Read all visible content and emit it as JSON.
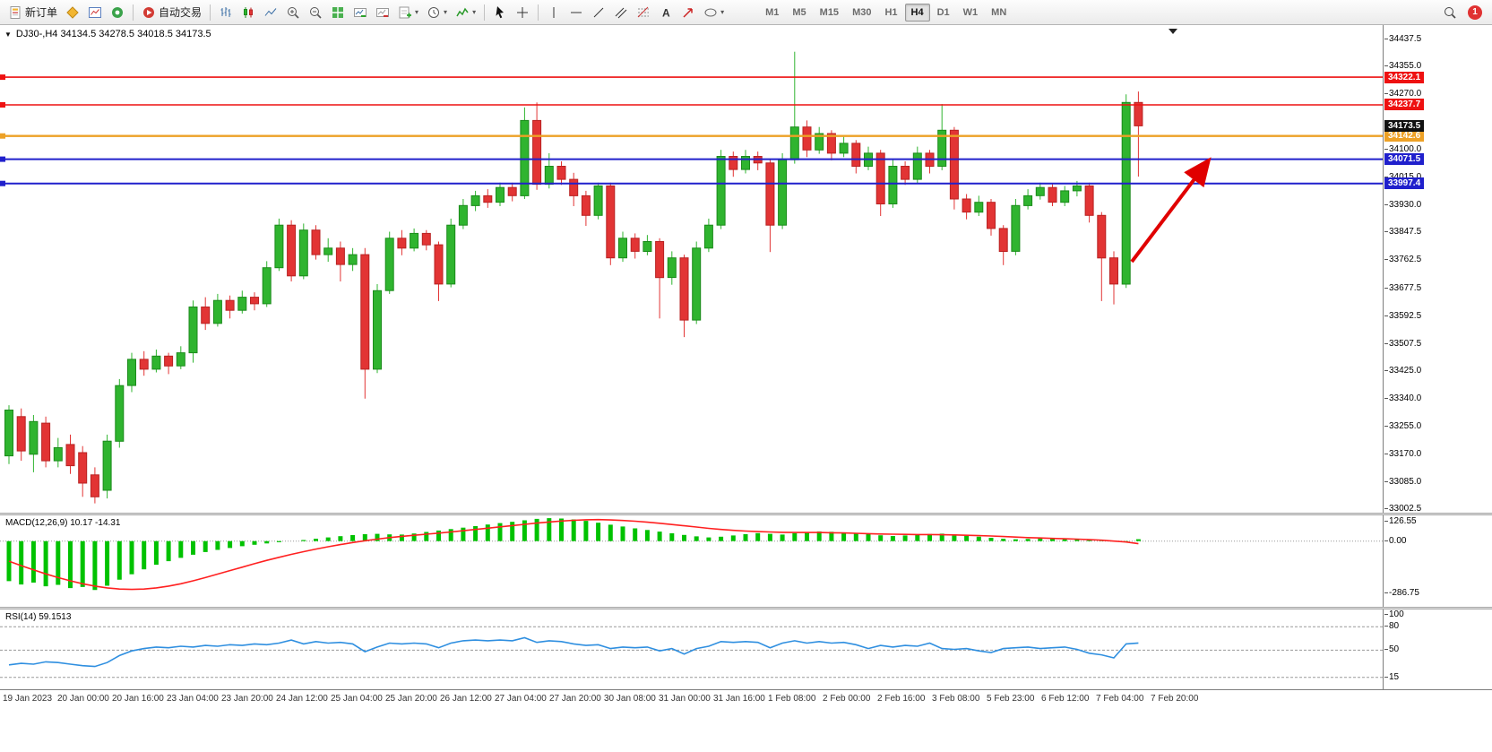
{
  "toolbar": {
    "new_order_label": "新订单",
    "autotrading_label": "自动交易",
    "notification_count": "1",
    "timeframes": [
      {
        "label": "M1",
        "active": false
      },
      {
        "label": "M5",
        "active": false
      },
      {
        "label": "M15",
        "active": false
      },
      {
        "label": "M30",
        "active": false
      },
      {
        "label": "H1",
        "active": false
      },
      {
        "label": "H4",
        "active": true
      },
      {
        "label": "D1",
        "active": false
      },
      {
        "label": "W1",
        "active": false
      },
      {
        "label": "MN",
        "active": false
      }
    ]
  },
  "chart": {
    "header": "DJ30-,H4 34134.5 34278.5 34018.5 34173.5",
    "symbol": "DJ30-",
    "period": "H4",
    "current_price": "34173.5",
    "colors": {
      "up": "#2fb42f",
      "up_border": "#1b8a1b",
      "down": "#e23434",
      "down_border": "#b82222",
      "current_badge": "#111111"
    },
    "y_ticks": [
      "34437.5",
      "34355.0",
      "34270.0",
      "34100.0",
      "34015.0",
      "33930.0",
      "33847.5",
      "33762.5",
      "33677.5",
      "33592.5",
      "33507.5",
      "33425.0",
      "33340.0",
      "33255.0",
      "33170.0",
      "33085.0",
      "33002.5"
    ],
    "x_labels": [
      "19 Jan 2023",
      "20 Jan 00:00",
      "20 Jan 16:00",
      "23 Jan 04:00",
      "23 Jan 20:00",
      "24 Jan 12:00",
      "25 Jan 04:00",
      "25 Jan 20:00",
      "26 Jan 12:00",
      "27 Jan 04:00",
      "27 Jan 20:00",
      "30 Jan 08:00",
      "31 Jan 00:00",
      "31 Jan 16:00",
      "1 Feb 08:00",
      "2 Feb 00:00",
      "2 Feb 16:00",
      "3 Feb 08:00",
      "5 Feb 23:00",
      "6 Feb 12:00",
      "7 Feb 04:00",
      "7 Feb 20:00"
    ],
    "hlines": [
      {
        "price": 34322.1,
        "label": "34322.1",
        "color": "#ee1111",
        "width": 1.6
      },
      {
        "price": 34237.7,
        "label": "34237.7",
        "color": "#ee1111",
        "width": 1.6
      },
      {
        "price": 34142.6,
        "label": "34142.6",
        "color": "#eda126",
        "width": 2.4
      },
      {
        "price": 34071.5,
        "label": "34071.5",
        "color": "#2020cc",
        "width": 2
      },
      {
        "price": 33997.4,
        "label": "33997.4",
        "color": "#2020cc",
        "width": 2
      }
    ]
  },
  "chart_data": {
    "type": "candlestick",
    "symbol": "DJ30-",
    "timeframe": "H4",
    "ohlc_readout": {
      "open": "34134.5",
      "high": "34278.5",
      "low": "34018.5",
      "close": "34173.5"
    },
    "ylim": [
      33002.5,
      34437.5
    ],
    "candles": [
      [
        33165,
        33320,
        33140,
        33305
      ],
      [
        33285,
        33310,
        33150,
        33180
      ],
      [
        33170,
        33290,
        33115,
        33270
      ],
      [
        33265,
        33285,
        33130,
        33150
      ],
      [
        33150,
        33220,
        33130,
        33190
      ],
      [
        33200,
        33230,
        33110,
        33135
      ],
      [
        33175,
        33195,
        33040,
        33082
      ],
      [
        33107,
        33130,
        33020,
        33040
      ],
      [
        33060,
        33230,
        33035,
        33210
      ],
      [
        33210,
        33400,
        33190,
        33380
      ],
      [
        33380,
        33480,
        33360,
        33460
      ],
      [
        33460,
        33485,
        33410,
        33430
      ],
      [
        33430,
        33490,
        33420,
        33470
      ],
      [
        33470,
        33480,
        33415,
        33440
      ],
      [
        33440,
        33500,
        33430,
        33480
      ],
      [
        33480,
        33640,
        33450,
        33620
      ],
      [
        33620,
        33650,
        33550,
        33570
      ],
      [
        33570,
        33660,
        33560,
        33640
      ],
      [
        33640,
        33655,
        33585,
        33610
      ],
      [
        33610,
        33670,
        33600,
        33650
      ],
      [
        33650,
        33665,
        33610,
        33630
      ],
      [
        33630,
        33760,
        33620,
        33740
      ],
      [
        33740,
        33890,
        33730,
        33870
      ],
      [
        33870,
        33885,
        33698,
        33715
      ],
      [
        33715,
        33875,
        33705,
        33855
      ],
      [
        33855,
        33870,
        33765,
        33780
      ],
      [
        33780,
        33830,
        33758,
        33800
      ],
      [
        33800,
        33820,
        33698,
        33750
      ],
      [
        33750,
        33800,
        33730,
        33780
      ],
      [
        33780,
        33800,
        33340,
        33430
      ],
      [
        33430,
        33690,
        33418,
        33670
      ],
      [
        33670,
        33850,
        33660,
        33830
      ],
      [
        33830,
        33855,
        33778,
        33800
      ],
      [
        33800,
        33860,
        33790,
        33845
      ],
      [
        33845,
        33855,
        33793,
        33810
      ],
      [
        33810,
        33820,
        33638,
        33690
      ],
      [
        33690,
        33890,
        33680,
        33870
      ],
      [
        33870,
        33950,
        33858,
        33930
      ],
      [
        33930,
        33975,
        33913,
        33960
      ],
      [
        33960,
        33980,
        33923,
        33940
      ],
      [
        33940,
        34000,
        33928,
        33985
      ],
      [
        33985,
        34000,
        33943,
        33960
      ],
      [
        33960,
        34230,
        33950,
        34190
      ],
      [
        34190,
        34245,
        33978,
        33995
      ],
      [
        33995,
        34090,
        33982,
        34050
      ],
      [
        34050,
        34065,
        33993,
        34010
      ],
      [
        34010,
        34030,
        33928,
        33960
      ],
      [
        33960,
        33975,
        33868,
        33900
      ],
      [
        33900,
        34000,
        33888,
        33990
      ],
      [
        33990,
        34000,
        33748,
        33770
      ],
      [
        33770,
        33850,
        33758,
        33830
      ],
      [
        33830,
        33845,
        33768,
        33790
      ],
      [
        33790,
        33840,
        33778,
        33820
      ],
      [
        33820,
        33830,
        33585,
        33710
      ],
      [
        33710,
        33790,
        33688,
        33770
      ],
      [
        33770,
        33780,
        33528,
        33580
      ],
      [
        33580,
        33820,
        33568,
        33800
      ],
      [
        33800,
        33890,
        33788,
        33870
      ],
      [
        33870,
        34100,
        33858,
        34080
      ],
      [
        34080,
        34095,
        34018,
        34040
      ],
      [
        34040,
        34100,
        34028,
        34080
      ],
      [
        34080,
        34095,
        34038,
        34060
      ],
      [
        34060,
        34070,
        33788,
        33870
      ],
      [
        33870,
        34090,
        33858,
        34070
      ],
      [
        34070,
        34400,
        34058,
        34170
      ],
      [
        34170,
        34190,
        34078,
        34100
      ],
      [
        34100,
        34170,
        34088,
        34150
      ],
      [
        34150,
        34160,
        34068,
        34090
      ],
      [
        34090,
        34140,
        34078,
        34120
      ],
      [
        34120,
        34130,
        34028,
        34050
      ],
      [
        34050,
        34110,
        34038,
        34090
      ],
      [
        34090,
        34100,
        33898,
        33935
      ],
      [
        33935,
        34070,
        33923,
        34050
      ],
      [
        34050,
        34065,
        33993,
        34010
      ],
      [
        34010,
        34110,
        33998,
        34090
      ],
      [
        34090,
        34100,
        34028,
        34050
      ],
      [
        34050,
        34240,
        34038,
        34160
      ],
      [
        34160,
        34170,
        33918,
        33950
      ],
      [
        33950,
        33965,
        33888,
        33910
      ],
      [
        33910,
        33960,
        33898,
        33940
      ],
      [
        33940,
        33950,
        33838,
        33860
      ],
      [
        33860,
        33870,
        33748,
        33790
      ],
      [
        33790,
        33950,
        33778,
        33930
      ],
      [
        33930,
        33980,
        33918,
        33960
      ],
      [
        33960,
        34000,
        33948,
        33985
      ],
      [
        33985,
        33995,
        33928,
        33940
      ],
      [
        33940,
        33990,
        33928,
        33975
      ],
      [
        33975,
        34005,
        33958,
        33990
      ],
      [
        33990,
        34000,
        33878,
        33900
      ],
      [
        33900,
        33910,
        33638,
        33770
      ],
      [
        33770,
        33790,
        33628,
        33690
      ],
      [
        33690,
        34270,
        33678,
        34245
      ],
      [
        34245,
        34278.5,
        34018.5,
        34173.5
      ]
    ],
    "macd": {
      "header": "MACD(12,26,9) 10.17 -14.31",
      "params": "12,26,9",
      "main_value": "10.17",
      "signal_value": "-14.31",
      "scale_labels": [
        "126.55",
        "0.00",
        "-286.75"
      ],
      "scale_values": [
        126.55,
        0,
        -286.75
      ],
      "histogram_color": "#00c200",
      "signal_color": "#ff2020",
      "histogram": [
        -220,
        -238,
        -228,
        -248,
        -240,
        -258,
        -252,
        -268,
        -245,
        -212,
        -182,
        -155,
        -130,
        -110,
        -92,
        -75,
        -60,
        -48,
        -38,
        -28,
        -20,
        -13,
        -6,
        0,
        6,
        13,
        20,
        27,
        33,
        38,
        40,
        37,
        36,
        42,
        50,
        58,
        66,
        74,
        82,
        91,
        99,
        106,
        114,
        122,
        126,
        124,
        119,
        111,
        101,
        90,
        80,
        70,
        61,
        52,
        43,
        34,
        26,
        20,
        24,
        31,
        38,
        44,
        40,
        36,
        43,
        49,
        53,
        51,
        47,
        43,
        38,
        32,
        28,
        31,
        35,
        39,
        41,
        37,
        30,
        24,
        18,
        13,
        10,
        12,
        15,
        17,
        15,
        11,
        7,
        3,
        -2,
        -6,
        10.17
      ],
      "signal": [
        -110,
        -135,
        -158,
        -180,
        -200,
        -218,
        -234,
        -247,
        -257,
        -263,
        -265,
        -263,
        -257,
        -247,
        -234,
        -218,
        -200,
        -181,
        -162,
        -143,
        -124,
        -106,
        -89,
        -73,
        -58,
        -44,
        -31,
        -19,
        -8,
        2,
        11,
        19,
        26,
        32,
        38,
        44,
        50,
        57,
        64,
        71,
        78,
        85,
        92,
        99,
        105,
        110,
        114,
        117,
        118,
        116,
        113,
        109,
        104,
        98,
        91,
        84,
        77,
        70,
        64,
        59,
        55,
        52,
        50,
        48,
        47,
        47,
        47,
        46,
        45,
        43,
        41,
        39,
        38,
        37,
        36,
        36,
        35,
        34,
        32,
        30,
        28,
        25,
        22,
        19,
        17,
        15,
        13,
        11,
        8,
        5,
        0,
        -5,
        -14.31
      ]
    },
    "rsi": {
      "header": "RSI(14) 59.1513",
      "value": "59.1513",
      "levels": [
        80,
        50,
        15
      ],
      "scale_top_label": "100",
      "line_color": "#2f8fe0",
      "series": [
        31,
        33,
        32,
        35,
        34,
        32,
        30,
        29,
        34,
        43,
        49,
        52,
        54,
        53,
        55,
        54,
        56,
        55,
        57,
        56,
        58,
        57,
        59,
        63,
        58,
        61,
        59,
        60,
        58,
        48,
        54,
        59,
        58,
        59,
        58,
        53,
        59,
        62,
        63,
        62,
        63,
        62,
        66,
        60,
        62,
        61,
        58,
        56,
        57,
        52,
        54,
        53,
        54,
        49,
        52,
        45,
        52,
        55,
        61,
        60,
        61,
        60,
        53,
        59,
        62,
        59,
        61,
        59,
        60,
        57,
        52,
        56,
        54,
        56,
        55,
        59,
        52,
        51,
        52,
        49,
        47,
        52,
        53,
        54,
        52,
        53,
        54,
        51,
        46,
        44,
        40,
        58,
        59.15
      ]
    }
  },
  "annotations": {
    "arrow_color": "#e00000"
  }
}
